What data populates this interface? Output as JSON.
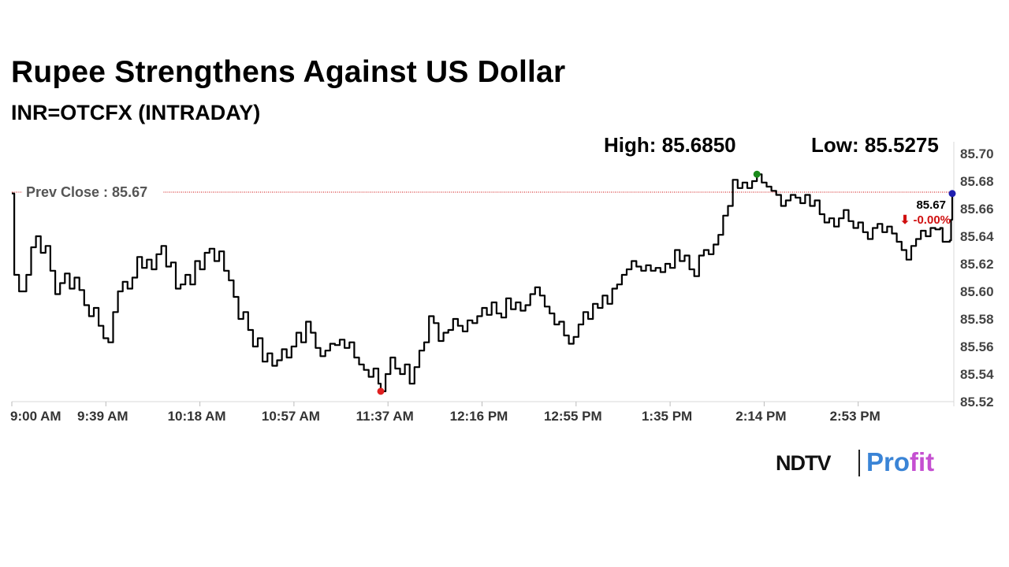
{
  "header": {
    "title": "Rupee Strengthens Against US Dollar",
    "subtitle": "INR=OTCFX (INTRADAY)"
  },
  "stats": {
    "high_label": "High: 85.6850",
    "low_label": "Low: 85.5275"
  },
  "branding": {
    "ndtv": "NDTV",
    "profit_a": "Pro",
    "profit_b": "fit"
  },
  "colors": {
    "line": "#000000",
    "prev_close_line": "#cc0000",
    "high_marker": "#1a8a1a",
    "low_marker": "#e02020",
    "last_marker": "#1f1fb0",
    "change_text": "#d01010"
  },
  "chart_data": {
    "type": "line",
    "title": "Rupee Strengthens Against US Dollar",
    "subtitle": "INR=OTCFX (INTRADAY)",
    "xlabel": "",
    "ylabel": "",
    "ylim": [
      85.52,
      85.7
    ],
    "y_ticks": [
      "85.70",
      "85.68",
      "85.66",
      "85.64",
      "85.62",
      "85.60",
      "85.58",
      "85.56",
      "85.54",
      "85.52"
    ],
    "x_ticks": [
      "9:00 AM",
      "9:39 AM",
      "10:18 AM",
      "10:57 AM",
      "11:37 AM",
      "12:16 PM",
      "12:55 PM",
      "1:35 PM",
      "2:14 PM",
      "2:53 PM"
    ],
    "x_range_minutes": [
      0,
      390
    ],
    "grid": false,
    "prev_close": {
      "label": "Prev Close : 85.67",
      "value": 85.672
    },
    "high": {
      "minute": 309,
      "value": 85.685
    },
    "low": {
      "minute": 153,
      "value": 85.5275
    },
    "last": {
      "minute": 390,
      "value": 85.671,
      "value_label": "85.67",
      "change_label": "⬇ -0.00%"
    },
    "series": [
      {
        "values": [
          [
            0,
            85.671
          ],
          [
            1,
            85.612
          ],
          [
            3,
            85.6
          ],
          [
            6,
            85.612
          ],
          [
            8,
            85.632
          ],
          [
            10,
            85.64
          ],
          [
            12,
            85.628
          ],
          [
            14,
            85.633
          ],
          [
            16,
            85.615
          ],
          [
            18,
            85.598
          ],
          [
            20,
            85.606
          ],
          [
            22,
            85.613
          ],
          [
            24,
            85.602
          ],
          [
            26,
            85.61
          ],
          [
            28,
            85.601
          ],
          [
            30,
            85.59
          ],
          [
            32,
            85.582
          ],
          [
            34,
            85.588
          ],
          [
            36,
            85.575
          ],
          [
            38,
            85.566
          ],
          [
            40,
            85.563
          ],
          [
            42,
            85.585
          ],
          [
            44,
            85.6
          ],
          [
            46,
            85.607
          ],
          [
            48,
            85.602
          ],
          [
            50,
            85.61
          ],
          [
            52,
            85.625
          ],
          [
            54,
            85.617
          ],
          [
            56,
            85.623
          ],
          [
            58,
            85.616
          ],
          [
            60,
            85.627
          ],
          [
            62,
            85.633
          ],
          [
            64,
            85.618
          ],
          [
            66,
            85.621
          ],
          [
            68,
            85.602
          ],
          [
            70,
            85.605
          ],
          [
            72,
            85.612
          ],
          [
            74,
            85.605
          ],
          [
            76,
            85.622
          ],
          [
            78,
            85.616
          ],
          [
            80,
            85.628
          ],
          [
            82,
            85.631
          ],
          [
            84,
            85.622
          ],
          [
            86,
            85.629
          ],
          [
            88,
            85.615
          ],
          [
            90,
            85.608
          ],
          [
            92,
            85.596
          ],
          [
            94,
            85.58
          ],
          [
            96,
            85.585
          ],
          [
            98,
            85.572
          ],
          [
            100,
            85.56
          ],
          [
            102,
            85.566
          ],
          [
            104,
            85.549
          ],
          [
            106,
            85.555
          ],
          [
            108,
            85.546
          ],
          [
            110,
            85.55
          ],
          [
            112,
            85.558
          ],
          [
            114,
            85.552
          ],
          [
            116,
            85.56
          ],
          [
            118,
            85.57
          ],
          [
            120,
            85.563
          ],
          [
            122,
            85.578
          ],
          [
            124,
            85.57
          ],
          [
            126,
            85.559
          ],
          [
            128,
            85.553
          ],
          [
            130,
            85.557
          ],
          [
            132,
            85.562
          ],
          [
            134,
            85.561
          ],
          [
            136,
            85.565
          ],
          [
            138,
            85.559
          ],
          [
            140,
            85.563
          ],
          [
            142,
            85.552
          ],
          [
            144,
            85.547
          ],
          [
            146,
            85.543
          ],
          [
            148,
            85.538
          ],
          [
            150,
            85.544
          ],
          [
            152,
            85.533
          ],
          [
            153,
            85.5275
          ],
          [
            155,
            85.54
          ],
          [
            157,
            85.552
          ],
          [
            159,
            85.544
          ],
          [
            161,
            85.54
          ],
          [
            163,
            85.547
          ],
          [
            165,
            85.533
          ],
          [
            167,
            85.545
          ],
          [
            169,
            85.557
          ],
          [
            171,
            85.563
          ],
          [
            173,
            85.582
          ],
          [
            175,
            85.577
          ],
          [
            177,
            85.564
          ],
          [
            179,
            85.57
          ],
          [
            181,
            85.572
          ],
          [
            183,
            85.58
          ],
          [
            185,
            85.575
          ],
          [
            187,
            85.571
          ],
          [
            189,
            85.579
          ],
          [
            191,
            85.577
          ],
          [
            193,
            85.582
          ],
          [
            195,
            85.588
          ],
          [
            197,
            85.583
          ],
          [
            199,
            85.592
          ],
          [
            201,
            85.584
          ],
          [
            203,
            85.581
          ],
          [
            205,
            85.595
          ],
          [
            207,
            85.587
          ],
          [
            209,
            85.592
          ],
          [
            211,
            85.586
          ],
          [
            213,
            85.59
          ],
          [
            215,
            85.598
          ],
          [
            217,
            85.603
          ],
          [
            219,
            85.597
          ],
          [
            221,
            85.589
          ],
          [
            223,
            85.584
          ],
          [
            225,
            85.576
          ],
          [
            227,
            85.578
          ],
          [
            229,
            85.568
          ],
          [
            231,
            85.562
          ],
          [
            233,
            85.567
          ],
          [
            235,
            85.576
          ],
          [
            237,
            85.585
          ],
          [
            239,
            85.58
          ],
          [
            241,
            85.591
          ],
          [
            243,
            85.588
          ],
          [
            245,
            85.597
          ],
          [
            247,
            85.591
          ],
          [
            249,
            85.602
          ],
          [
            251,
            85.605
          ],
          [
            253,
            85.612
          ],
          [
            255,
            85.616
          ],
          [
            257,
            85.622
          ],
          [
            259,
            85.618
          ],
          [
            261,
            85.615
          ],
          [
            263,
            85.619
          ],
          [
            265,
            85.615
          ],
          [
            267,
            85.617
          ],
          [
            269,
            85.614
          ],
          [
            271,
            85.62
          ],
          [
            273,
            85.617
          ],
          [
            275,
            85.63
          ],
          [
            277,
            85.622
          ],
          [
            279,
            85.626
          ],
          [
            281,
            85.616
          ],
          [
            283,
            85.611
          ],
          [
            285,
            85.626
          ],
          [
            287,
            85.63
          ],
          [
            289,
            85.627
          ],
          [
            291,
            85.634
          ],
          [
            293,
            85.641
          ],
          [
            295,
            85.655
          ],
          [
            297,
            85.662
          ],
          [
            299,
            85.681
          ],
          [
            301,
            85.675
          ],
          [
            303,
            85.679
          ],
          [
            305,
            85.675
          ],
          [
            307,
            85.68
          ],
          [
            309,
            85.685
          ],
          [
            311,
            85.679
          ],
          [
            313,
            85.676
          ],
          [
            315,
            85.673
          ],
          [
            317,
            85.67
          ],
          [
            319,
            85.662
          ],
          [
            321,
            85.666
          ],
          [
            323,
            85.67
          ],
          [
            325,
            85.668
          ],
          [
            327,
            85.664
          ],
          [
            329,
            85.67
          ],
          [
            331,
            85.662
          ],
          [
            333,
            85.666
          ],
          [
            335,
            85.656
          ],
          [
            337,
            85.65
          ],
          [
            339,
            85.653
          ],
          [
            341,
            85.647
          ],
          [
            343,
            85.653
          ],
          [
            345,
            85.659
          ],
          [
            347,
            85.651
          ],
          [
            349,
            85.646
          ],
          [
            351,
            85.65
          ],
          [
            353,
            85.643
          ],
          [
            355,
            85.638
          ],
          [
            357,
            85.646
          ],
          [
            359,
            85.649
          ],
          [
            361,
            85.643
          ],
          [
            363,
            85.647
          ],
          [
            365,
            85.642
          ],
          [
            367,
            85.636
          ],
          [
            369,
            85.63
          ],
          [
            371,
            85.623
          ],
          [
            373,
            85.633
          ],
          [
            375,
            85.638
          ],
          [
            377,
            85.644
          ],
          [
            379,
            85.64
          ],
          [
            381,
            85.646
          ],
          [
            383,
            85.645
          ],
          [
            385,
            85.646
          ],
          [
            386,
            85.636
          ],
          [
            389,
            85.637
          ],
          [
            389.5,
            85.652
          ],
          [
            390,
            85.671
          ]
        ]
      }
    ]
  }
}
